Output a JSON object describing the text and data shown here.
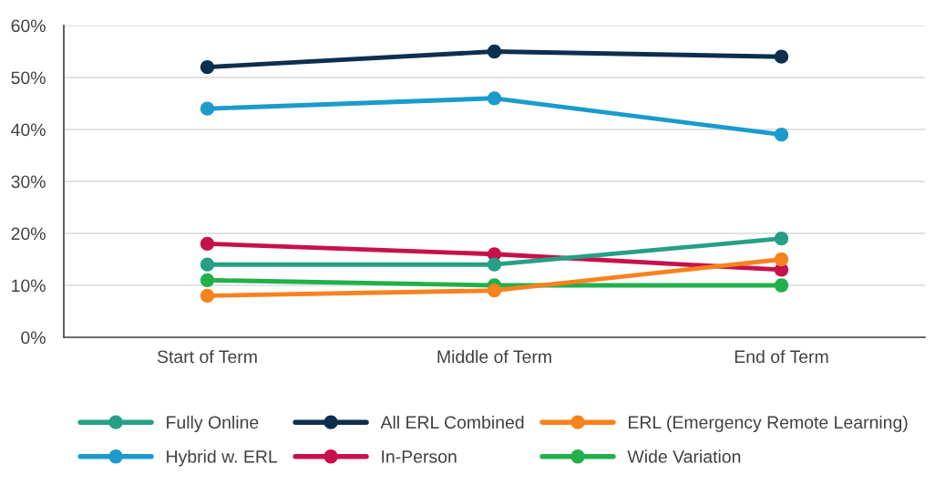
{
  "chart_data": {
    "type": "line",
    "categories": [
      "Start of Term",
      "Middle of Term",
      "End of Term"
    ],
    "series": [
      {
        "name": "Fully Online",
        "color": "#26a085",
        "values": [
          14,
          14,
          19
        ]
      },
      {
        "name": "All ERL Combined",
        "color": "#0d2f4f",
        "values": [
          52,
          55,
          54
        ]
      },
      {
        "name": "ERL (Emergency Remote Learning)",
        "color": "#f7821e",
        "values": [
          8,
          9,
          15
        ]
      },
      {
        "name": "Hybrid w. ERL",
        "color": "#1a9bcc",
        "values": [
          44,
          46,
          39
        ]
      },
      {
        "name": "In-Person",
        "color": "#c8104a",
        "values": [
          18,
          16,
          13
        ]
      },
      {
        "name": "Wide Variation",
        "color": "#21b04b",
        "values": [
          11,
          10,
          10
        ]
      }
    ],
    "ylim": [
      0,
      60
    ],
    "yticks": [
      {
        "value": 0,
        "label": "0%"
      },
      {
        "value": 10,
        "label": "10%"
      },
      {
        "value": 20,
        "label": "20%"
      },
      {
        "value": 30,
        "label": "30%"
      },
      {
        "value": 40,
        "label": "40%"
      },
      {
        "value": 50,
        "label": "50%"
      },
      {
        "value": 60,
        "label": "60%"
      }
    ],
    "grid": "y",
    "legend": "bottom",
    "marker": "circle",
    "line_style": "solid"
  }
}
